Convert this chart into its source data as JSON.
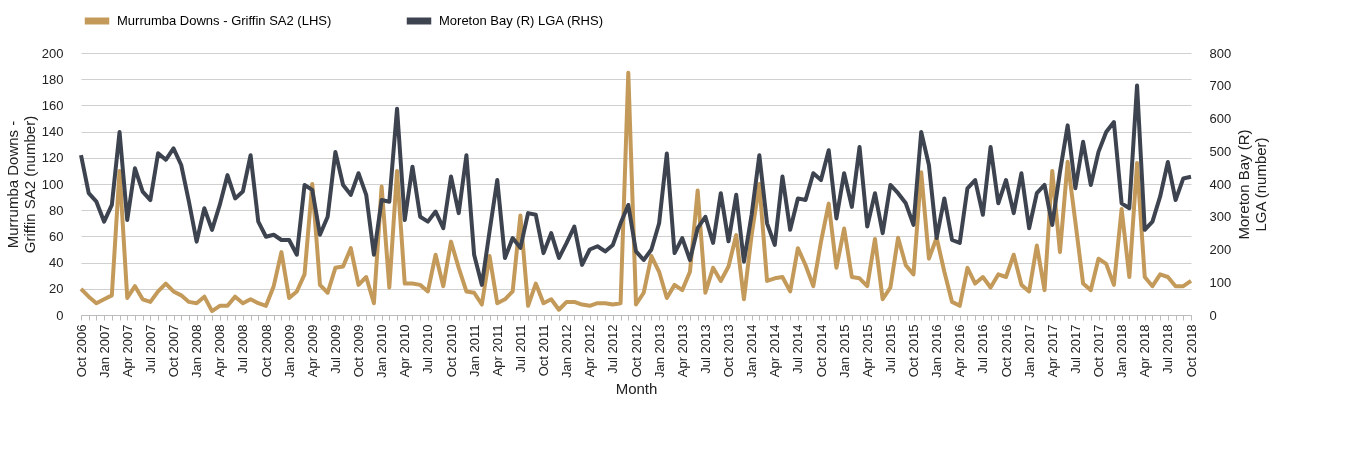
{
  "chart_data": {
    "type": "line",
    "xlabel": "Month",
    "ylabel": "Murrumba Downs - Griffin SA2 (number)",
    "y2label": "Moreton Bay (R) LGA (number)",
    "categories": [
      "Oct 2006",
      null,
      null,
      "Jan 2007",
      null,
      null,
      "Apr 2007",
      null,
      null,
      "Jul 2007",
      null,
      null,
      "Oct 2007",
      null,
      null,
      "Jan 2008",
      null,
      null,
      "Apr 2008",
      null,
      null,
      "Jul 2008",
      null,
      null,
      "Oct 2008",
      null,
      null,
      "Jan 2009",
      null,
      null,
      "Apr 2009",
      null,
      null,
      "Jul 2009",
      null,
      null,
      "Oct 2009",
      null,
      null,
      "Jan 2010",
      null,
      null,
      "Apr 2010",
      null,
      null,
      "Jul 2010",
      null,
      null,
      "Oct 2010",
      null,
      null,
      "Jan 2011",
      null,
      null,
      "Apr 2011",
      null,
      null,
      "Jul 2011",
      null,
      null,
      "Oct 2011",
      null,
      null,
      "Jan 2012",
      null,
      null,
      "Apr 2012",
      null,
      null,
      "Jul 2012",
      null,
      null,
      "Oct 2012",
      null,
      null,
      "Jan 2013",
      null,
      null,
      "Apr 2013",
      null,
      null,
      "Jul 2013",
      null,
      null,
      "Oct 2013",
      null,
      null,
      "Jan 2014",
      null,
      null,
      "Apr 2014",
      null,
      null,
      "Jul 2014",
      null,
      null,
      "Oct 2014",
      null,
      null,
      "Jan 2015",
      null,
      null,
      "Apr 2015",
      null,
      null,
      "Jul 2015",
      null,
      null,
      "Oct 2015",
      null,
      null,
      "Jan 2016",
      null,
      null,
      "Apr 2016",
      null,
      null,
      "Jul 2016",
      null,
      null,
      "Oct 2016",
      null,
      null,
      "Jan 2017",
      null,
      null,
      "Apr 2017",
      null,
      null,
      "Jul 2017",
      null,
      null,
      "Oct 2017",
      null,
      null,
      "Jan 2018",
      null,
      null,
      "Apr 2018",
      null,
      null,
      "Jul 2018",
      null,
      null,
      "Oct 2018"
    ],
    "series": [
      {
        "name": "Murrumba Downs - Griffin SA2 (LHS)",
        "color": "#c49a5a",
        "values": [
          20,
          14,
          9,
          12,
          15,
          110,
          13,
          22,
          12,
          10,
          18,
          24,
          18,
          15,
          10,
          9,
          14,
          3,
          7,
          7,
          14,
          9,
          12,
          9,
          7,
          22,
          48,
          13,
          18,
          31,
          100,
          23,
          17,
          36,
          37,
          51,
          23,
          29,
          9,
          98,
          21,
          110,
          24,
          24,
          23,
          18,
          46,
          22,
          56,
          36,
          18,
          17,
          8,
          45,
          9,
          12,
          18,
          76,
          7,
          24,
          9,
          12,
          4,
          10,
          10,
          8,
          7,
          9,
          9,
          8,
          9,
          185,
          8,
          17,
          45,
          33,
          13,
          23,
          19,
          33,
          95,
          17,
          36,
          26,
          37,
          61,
          12,
          61,
          100,
          26,
          28,
          29,
          18,
          51,
          38,
          22,
          56,
          85,
          36,
          66,
          29,
          28,
          22,
          58,
          12,
          21,
          59,
          38,
          31,
          109,
          43,
          59,
          33,
          10,
          7,
          36,
          24,
          29,
          21,
          31,
          29,
          46,
          23,
          18,
          53,
          19,
          110,
          48,
          117,
          71,
          24,
          19,
          43,
          39,
          23,
          81,
          29,
          116,
          29,
          22,
          31,
          29,
          22,
          22,
          26
        ]
      },
      {
        "name": "Moreton Bay (R) LGA (RHS)",
        "color": "#3d4450",
        "axis": "y2",
        "values": [
          488,
          372,
          346,
          285,
          336,
          559,
          290,
          448,
          377,
          351,
          494,
          474,
          509,
          458,
          346,
          224,
          326,
          260,
          336,
          427,
          356,
          377,
          488,
          285,
          239,
          245,
          229,
          229,
          184,
          397,
          382,
          245,
          300,
          498,
          397,
          367,
          433,
          367,
          184,
          351,
          346,
          630,
          290,
          453,
          300,
          285,
          316,
          265,
          423,
          311,
          488,
          184,
          92,
          255,
          412,
          174,
          235,
          205,
          311,
          306,
          189,
          250,
          174,
          220,
          270,
          153,
          200,
          210,
          194,
          214,
          280,
          336,
          194,
          168,
          200,
          280,
          493,
          189,
          235,
          168,
          265,
          300,
          220,
          372,
          225,
          367,
          163,
          306,
          488,
          280,
          214,
          423,
          260,
          356,
          351,
          433,
          412,
          503,
          295,
          433,
          330,
          513,
          270,
          372,
          250,
          397,
          372,
          341,
          275,
          559,
          458,
          235,
          356,
          229,
          220,
          387,
          412,
          306,
          513,
          341,
          412,
          311,
          433,
          265,
          372,
          397,
          275,
          437,
          579,
          387,
          529,
          397,
          498,
          559,
          589,
          341,
          326,
          701,
          260,
          285,
          362,
          467,
          351,
          417,
          422
        ]
      }
    ],
    "ylim": [
      0,
      200
    ],
    "yticks": [
      0,
      20,
      40,
      60,
      80,
      100,
      120,
      140,
      160,
      180,
      200
    ],
    "y2lim": [
      0,
      800
    ],
    "y2ticks": [
      0,
      100,
      200,
      300,
      400,
      500,
      600,
      700,
      800
    ],
    "grid": "y",
    "legend": "top",
    "line_style": "solid",
    "marker": "none"
  }
}
